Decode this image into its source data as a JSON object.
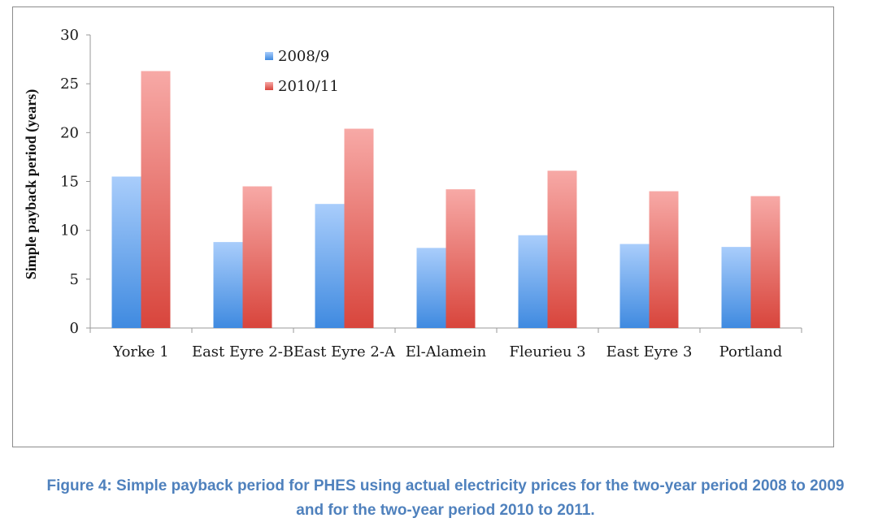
{
  "chart_data": {
    "type": "bar",
    "title": "",
    "xlabel": "",
    "ylabel": "Simple payback period (years)",
    "ylim": [
      0,
      30
    ],
    "yticks": [
      0,
      5,
      10,
      15,
      20,
      25,
      30
    ],
    "categories": [
      "Yorke 1",
      "East Eyre 2-B",
      "East Eyre 2-A",
      "El-Alamein",
      "Fleurieu 3",
      "East Eyre 3",
      "Portland"
    ],
    "series": [
      {
        "name": "2008/9",
        "color": "#5b9bd5",
        "values": [
          15.5,
          8.8,
          12.7,
          8.2,
          9.5,
          8.6,
          8.3
        ]
      },
      {
        "name": "2010/11",
        "color": "#e0504d",
        "values": [
          26.3,
          14.5,
          20.4,
          14.2,
          16.1,
          14.0,
          13.5
        ]
      }
    ],
    "legend": "top-left inside plot",
    "grid": false
  },
  "caption": {
    "line1": "Figure 4: Simple payback period for PHES using actual electricity prices for the two-year period 2008 to 2009",
    "line2": "and for the two-year period 2010 to 2011."
  }
}
